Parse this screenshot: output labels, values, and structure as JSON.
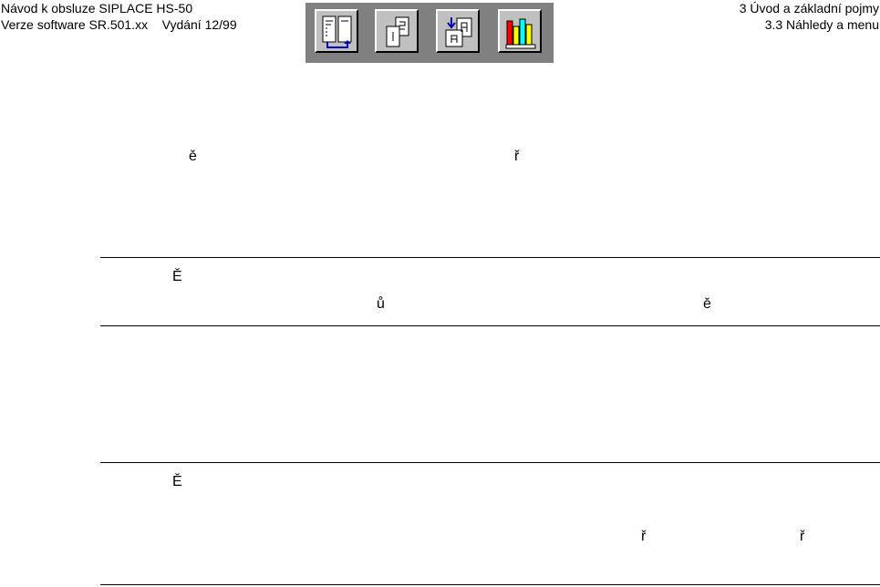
{
  "header": {
    "manual_title": "Návod k obsluze SIPLACE HS-50",
    "version_line": "Verze software SR.501.xx    Vydání 12/99",
    "chapter": "3 Úvod a základní pojmy",
    "section": "3.3 Náhledy a menu"
  },
  "toolbar": {
    "buttons": [
      {
        "icon": "table-of-contents-icon"
      },
      {
        "icon": "pages-icon"
      },
      {
        "icon": "back-to-page-icon"
      },
      {
        "icon": "library-books-icon"
      }
    ]
  },
  "body_fragments": {
    "p1_a": "ě",
    "p1_b": "ř",
    "t1_a": "Ě",
    "t1_b": "ů",
    "t1_c": "ě",
    "t2_a": "Ě",
    "t2_b": "ř",
    "t2_c": "ř"
  }
}
